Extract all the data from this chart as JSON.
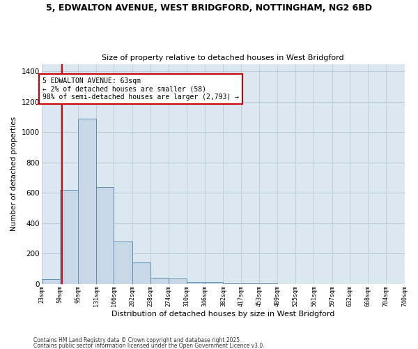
{
  "title_line1": "5, EDWALTON AVENUE, WEST BRIDGFORD, NOTTINGHAM, NG2 6BD",
  "title_line2": "Size of property relative to detached houses in West Bridgford",
  "xlabel": "Distribution of detached houses by size in West Bridgford",
  "ylabel": "Number of detached properties",
  "footer_line1": "Contains HM Land Registry data © Crown copyright and database right 2025.",
  "footer_line2": "Contains public sector information licensed under the Open Government Licence v3.0.",
  "bar_color": "#c8d8e8",
  "bar_edge_color": "#6090b0",
  "grid_color": "#b8c8d8",
  "bg_color": "#dce8f0",
  "fig_bg_color": "#ffffff",
  "vline_x": 63,
  "vline_color": "#cc0000",
  "annotation_text": "5 EDWALTON AVENUE: 63sqm\n← 2% of detached houses are smaller (58)\n98% of semi-detached houses are larger (2,793) →",
  "annotation_box_color": "#ffffff",
  "annotation_box_edge": "#cc0000",
  "bin_edges": [
    23,
    59,
    95,
    131,
    166,
    202,
    238,
    274,
    310,
    346,
    382,
    417,
    453,
    489,
    525,
    561,
    597,
    632,
    668,
    704,
    740
  ],
  "bar_heights": [
    30,
    620,
    1090,
    640,
    280,
    140,
    38,
    35,
    13,
    13,
    5,
    2,
    1,
    0,
    0,
    0,
    0,
    0,
    0,
    0
  ],
  "ylim": [
    0,
    1450
  ],
  "yticks": [
    0,
    200,
    400,
    600,
    800,
    1000,
    1200,
    1400
  ]
}
